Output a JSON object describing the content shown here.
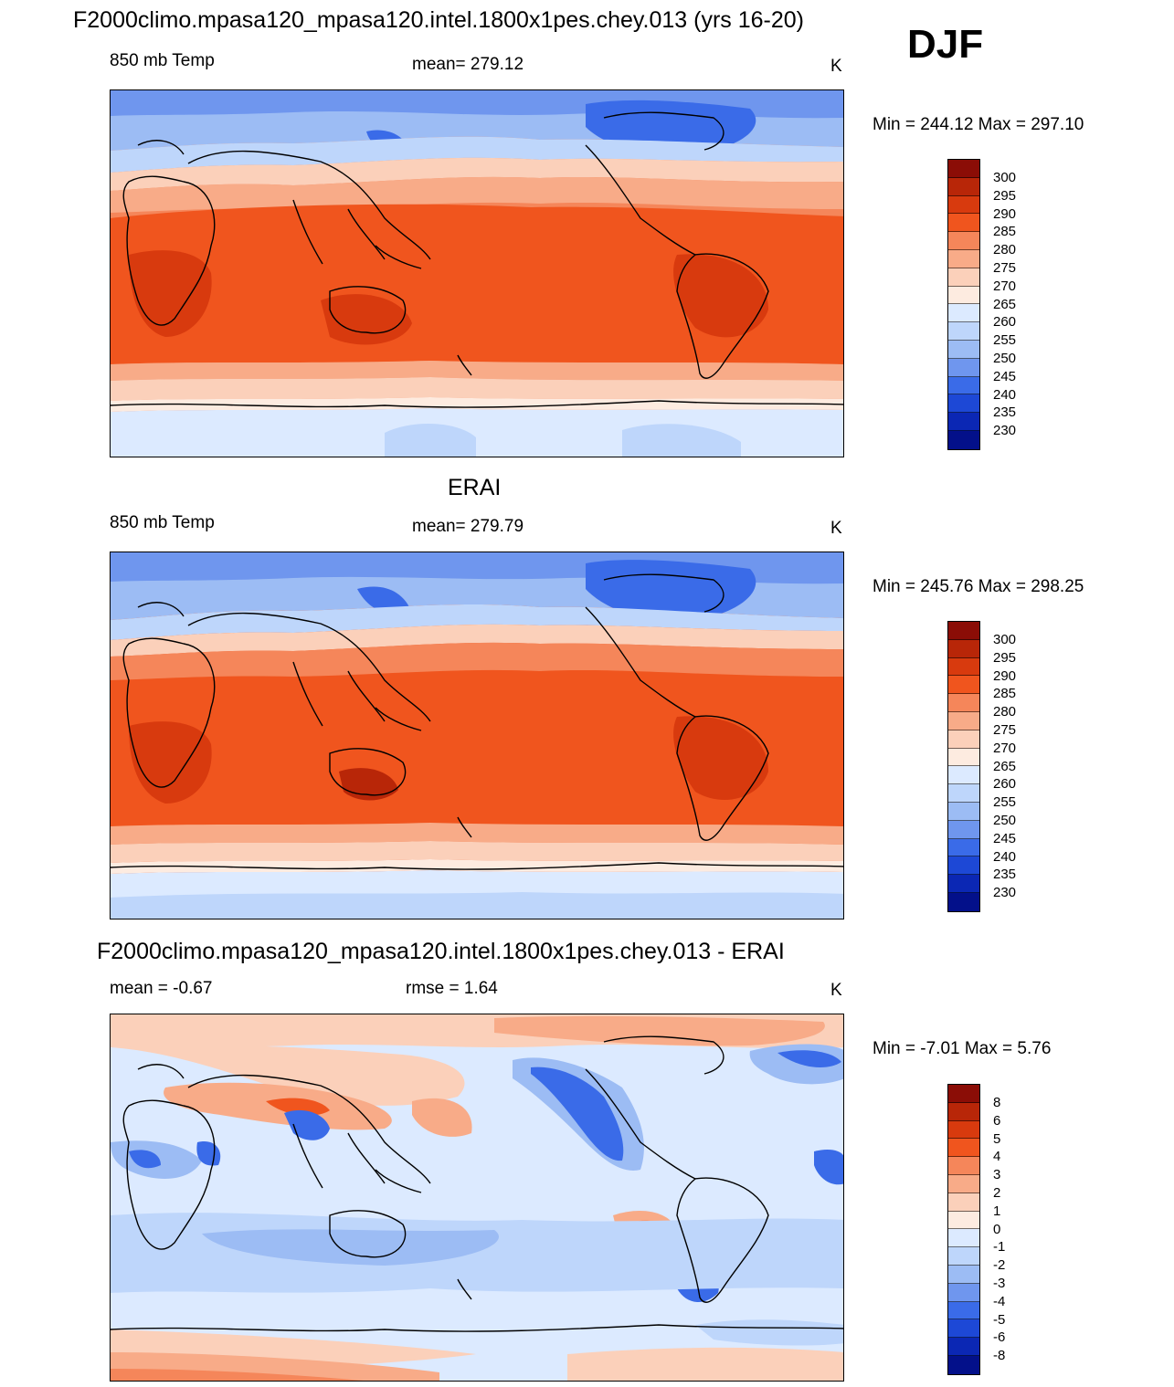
{
  "main_title": "F2000climo.mpasa120_mpasa120.intel.1800x1pes.chey.013 (yrs 16-20)",
  "season": "DJF",
  "panels": [
    {
      "title": "",
      "left_label": "850 mb Temp",
      "center_label": "mean= 279.12",
      "units": "K",
      "minmax": "Min = 244.12 Max = 297.10",
      "colorbar": {
        "labels": [
          "300",
          "295",
          "290",
          "285",
          "280",
          "275",
          "270",
          "265",
          "260",
          "255",
          "250",
          "245",
          "240",
          "235",
          "230"
        ],
        "colors": [
          "#8b0d06",
          "#b82608",
          "#d83a0e",
          "#f0551e",
          "#f5865a",
          "#f8ab88",
          "#fbd0ba",
          "#fdebe0",
          "#dceaff",
          "#bed6fb",
          "#9cbcf4",
          "#6f96ee",
          "#3a6be8",
          "#1d48d6",
          "#0b27b4",
          "#03108a"
        ]
      }
    },
    {
      "title": "ERAI",
      "left_label": "850 mb Temp",
      "center_label": "mean= 279.79",
      "units": "K",
      "minmax": "Min = 245.76 Max = 298.25",
      "colorbar": {
        "labels": [
          "300",
          "295",
          "290",
          "285",
          "280",
          "275",
          "270",
          "265",
          "260",
          "255",
          "250",
          "245",
          "240",
          "235",
          "230"
        ],
        "colors": [
          "#8b0d06",
          "#b82608",
          "#d83a0e",
          "#f0551e",
          "#f5865a",
          "#f8ab88",
          "#fbd0ba",
          "#fdebe0",
          "#dceaff",
          "#bed6fb",
          "#9cbcf4",
          "#6f96ee",
          "#3a6be8",
          "#1d48d6",
          "#0b27b4",
          "#03108a"
        ]
      }
    },
    {
      "title": "F2000climo.mpasa120_mpasa120.intel.1800x1pes.chey.013 - ERAI",
      "left_label": "mean =  -0.67",
      "center_label": "rmse =   1.64",
      "units": "K",
      "minmax": "Min =  -7.01 Max =   5.76",
      "colorbar": {
        "labels": [
          "8",
          "6",
          "5",
          "4",
          "3",
          "2",
          "1",
          "0",
          "-1",
          "-2",
          "-3",
          "-4",
          "-5",
          "-6",
          "-8"
        ],
        "colors": [
          "#8b0d06",
          "#b82608",
          "#d83a0e",
          "#f0551e",
          "#f5865a",
          "#f8ab88",
          "#fbd0ba",
          "#fdebe0",
          "#dceaff",
          "#bed6fb",
          "#9cbcf4",
          "#6f96ee",
          "#3a6be8",
          "#1d48d6",
          "#0b27b4",
          "#03108a"
        ]
      }
    }
  ]
}
